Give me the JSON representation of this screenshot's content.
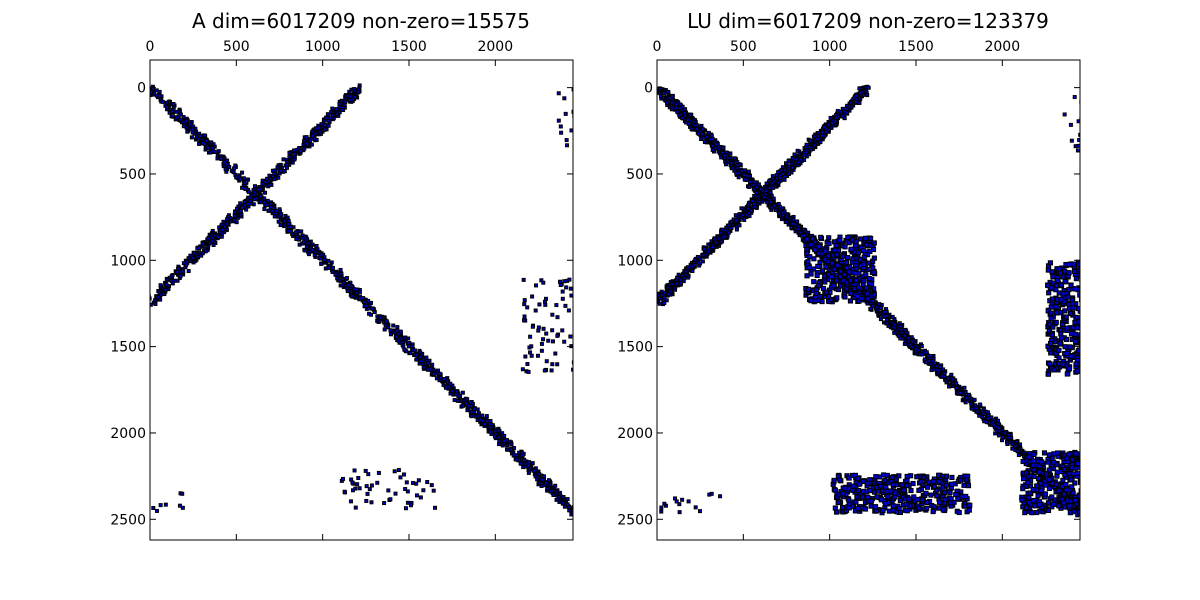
{
  "chart_data": [
    {
      "type": "spy",
      "title": "A dim=6017209 non-zero=15575",
      "xlim": [
        0,
        2450
      ],
      "ylim": [
        2620,
        -160
      ],
      "xticks": [
        0,
        500,
        1000,
        1500,
        2000
      ],
      "yticks": [
        0,
        500,
        1000,
        1500,
        2000,
        2500
      ],
      "marker_color": "#0000cc",
      "marker_edge": "#000000",
      "regions": {
        "diagonal": [
          [
            0,
            0
          ],
          [
            2450,
            2450
          ]
        ],
        "anti_diagonal": [
          [
            1200,
            0
          ],
          [
            0,
            1230
          ]
        ],
        "cluster_top_right": [
          [
            2350,
            0
          ],
          [
            2450,
            350
          ]
        ],
        "cluster_right_mid": [
          [
            2150,
            1080
          ],
          [
            2450,
            1650
          ]
        ],
        "cluster_bottom_left": [
          [
            0,
            2340
          ],
          [
            200,
            2450
          ]
        ],
        "cluster_bottom_mid": [
          [
            1100,
            2200
          ],
          [
            1650,
            2450
          ]
        ]
      }
    },
    {
      "type": "spy",
      "title": "LU dim=6017209 non-zero=123379",
      "xlim": [
        0,
        2450
      ],
      "ylim": [
        2620,
        -160
      ],
      "xticks": [
        0,
        500,
        1000,
        1500,
        2000
      ],
      "yticks": [
        0,
        500,
        1000,
        1500,
        2000,
        2500
      ],
      "marker_color": "#0000cc",
      "marker_edge": "#000000",
      "regions": {
        "diagonal": [
          [
            0,
            0
          ],
          [
            2450,
            2450
          ]
        ],
        "anti_diagonal": [
          [
            1200,
            0
          ],
          [
            0,
            1230
          ]
        ],
        "fill_block_center": [
          [
            850,
            850
          ],
          [
            1250,
            1230
          ]
        ],
        "cluster_top_right": [
          [
            2350,
            0
          ],
          [
            2450,
            370
          ]
        ],
        "fill_block_right": [
          [
            2250,
            1000
          ],
          [
            2450,
            1650
          ]
        ],
        "fill_block_bottom_right": [
          [
            2100,
            2100
          ],
          [
            2450,
            2450
          ]
        ],
        "cluster_bottom_left": [
          [
            0,
            2340
          ],
          [
            380,
            2450
          ]
        ],
        "fill_block_bottom_mid": [
          [
            1000,
            2230
          ],
          [
            1800,
            2450
          ]
        ]
      }
    }
  ]
}
